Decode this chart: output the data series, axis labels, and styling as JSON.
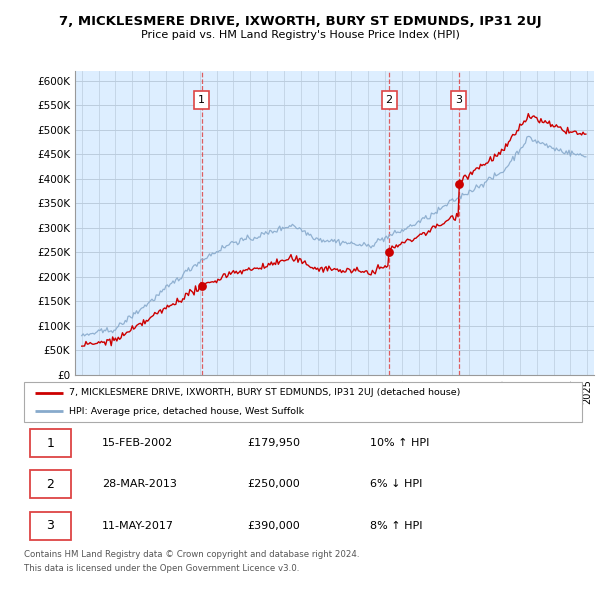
{
  "title": "7, MICKLESMERE DRIVE, IXWORTH, BURY ST EDMUNDS, IP31 2UJ",
  "subtitle": "Price paid vs. HM Land Registry's House Price Index (HPI)",
  "red_label": "7, MICKLESMERE DRIVE, IXWORTH, BURY ST EDMUNDS, IP31 2UJ (detached house)",
  "blue_label": "HPI: Average price, detached house, West Suffolk",
  "footer1": "Contains HM Land Registry data © Crown copyright and database right 2024.",
  "footer2": "This data is licensed under the Open Government Licence v3.0.",
  "transactions": [
    {
      "num": 1,
      "date": "15-FEB-2002",
      "price": "£179,950",
      "hpi": "10% ↑ HPI"
    },
    {
      "num": 2,
      "date": "28-MAR-2013",
      "price": "£250,000",
      "hpi": "6% ↓ HPI"
    },
    {
      "num": 3,
      "date": "11-MAY-2017",
      "price": "£390,000",
      "hpi": "8% ↑ HPI"
    }
  ],
  "sale_years": [
    2002.12,
    2013.24,
    2017.37
  ],
  "sale_prices": [
    179950,
    250000,
    390000
  ],
  "ylim": [
    0,
    620000
  ],
  "yticks": [
    0,
    50000,
    100000,
    150000,
    200000,
    250000,
    300000,
    350000,
    400000,
    450000,
    500000,
    550000,
    600000
  ],
  "red_color": "#cc0000",
  "blue_color": "#88aacc",
  "dash_color": "#dd4444",
  "chart_bg": "#ddeeff",
  "grid_color": "#bbccdd"
}
